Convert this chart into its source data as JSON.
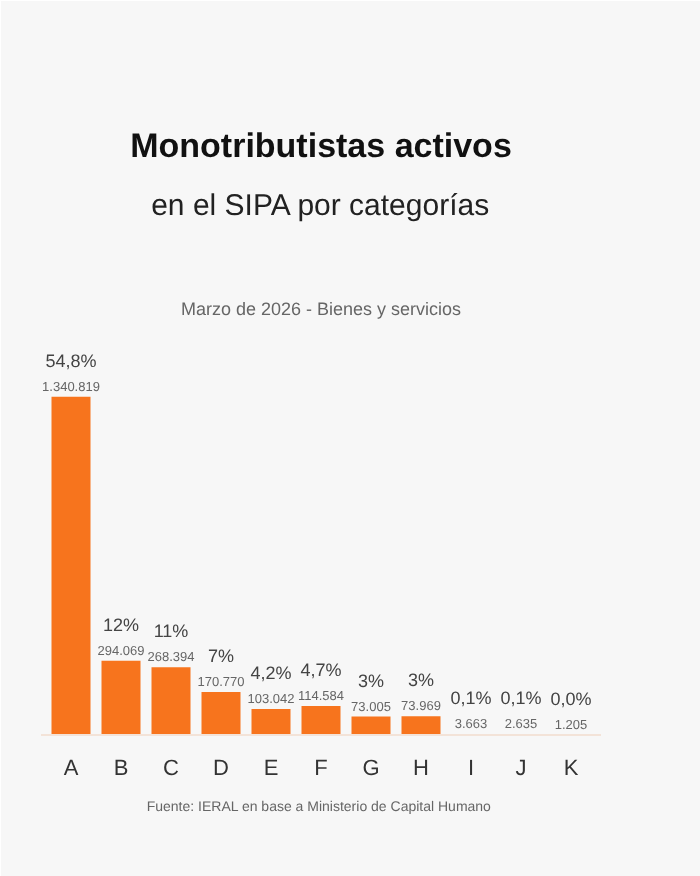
{
  "chart_data": {
    "type": "bar",
    "title": "Monotributistas activos",
    "subtitle": "en el SIPA por categorías",
    "categories": [
      "A",
      "B",
      "C",
      "D",
      "E",
      "F",
      "G",
      "H",
      "I",
      "J",
      "K"
    ],
    "values": [
      1340819,
      294069,
      268394,
      170770,
      103042,
      114584,
      73005,
      73969,
      3663,
      2635,
      1205
    ],
    "value_labels": [
      "54,8%\n1.340.819",
      "12%\n294.069",
      "11%\n268.394",
      "7%\n170.770",
      "4,2%\n103.042",
      "4,7%\n114.584",
      "3%\n73.005",
      "3%\n73.969",
      "0,1%\n3.663",
      "0,1%\n2.635",
      "0,0%\n1.205"
    ],
    "color": "#f7741d",
    "annotations": [
      "Marzo de 2026 - Bienes y servicios",
      "Fuente:  IERAL en base a Ministerio de Capital Humano"
    ]
  }
}
